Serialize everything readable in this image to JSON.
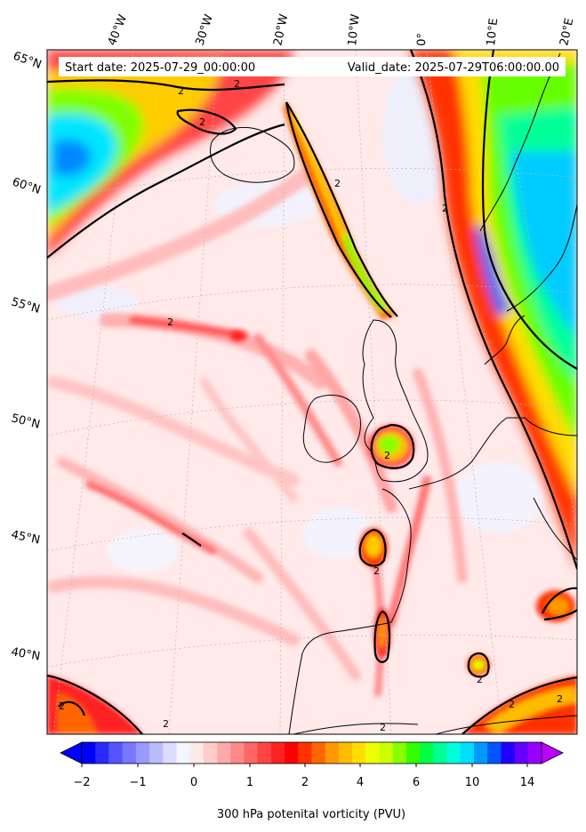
{
  "header": {
    "start_date": "Start date: 2025-07-29_00:00:00",
    "valid_date": "Valid_date: 2025-07-29T06:00:00.00"
  },
  "map": {
    "projection": "polar stereographic (North Atlantic / Europe)",
    "field": "300 hPa potential vorticity",
    "contour_level_label": "2",
    "lon_labels": [
      "40°W",
      "30°W",
      "20°W",
      "10°W",
      "0°",
      "10°E",
      "20°E"
    ],
    "lat_labels": [
      "65°N",
      "60°N",
      "55°N",
      "50°N",
      "45°N",
      "40°N"
    ],
    "colors": {
      "land_line": "#000000",
      "contour": "#000000",
      "background_low": "#ffeaea",
      "gridline": "#b0b0b0"
    }
  },
  "colorbar": {
    "label": "300 hPa potenital vorticity (PVU)",
    "ticks": [
      "−2",
      "−1",
      "0",
      "1",
      "2",
      "4",
      "6",
      "10",
      "14"
    ],
    "extend": "both",
    "colors": [
      "#0000ff",
      "#2a2aff",
      "#5555ff",
      "#7777ff",
      "#9999ff",
      "#bbbbff",
      "#dcdcff",
      "#f5f5ff",
      "#ffe8e8",
      "#ffcccc",
      "#ffaaaa",
      "#ff8888",
      "#ff6666",
      "#ff4444",
      "#ff2222",
      "#ff0000",
      "#ff3300",
      "#ff6600",
      "#ff9900",
      "#ffbb00",
      "#ffdd00",
      "#eeff00",
      "#ccff00",
      "#88ff00",
      "#33ff00",
      "#00ff44",
      "#00ff99",
      "#00ffdd",
      "#00ddff",
      "#0099ff",
      "#0055ff",
      "#2200ff",
      "#6600ff",
      "#9900ff"
    ],
    "under_color": "#0000ff",
    "over_color": "#bb00ff"
  }
}
